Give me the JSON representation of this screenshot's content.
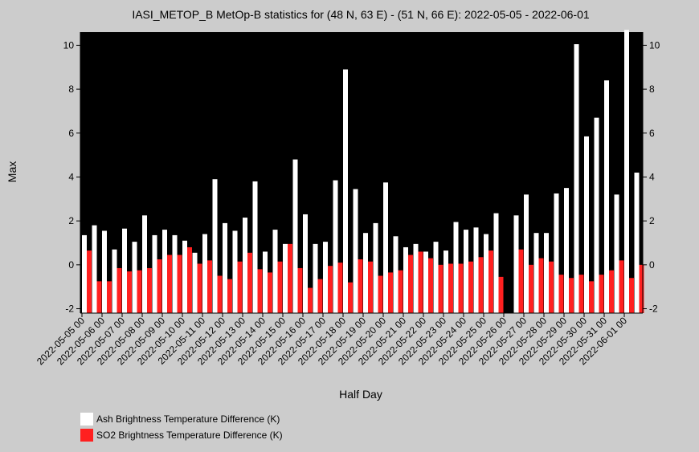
{
  "chart_data": {
    "type": "bar",
    "title": "IASI_METOP_B MetOp-B statistics for (48 N, 63 E) - (51 N, 66 E): 2022-05-05 - 2022-06-01",
    "xlabel": "Half Day",
    "ylabel": "Max",
    "ylim": [
      -2.2,
      10.6
    ],
    "yticks": [
      -2,
      0,
      2,
      4,
      6,
      8,
      10
    ],
    "x_tick_labels": [
      "2022-05-05 00",
      "2022-05-06 00",
      "2022-05-07 00",
      "2022-05-08 00",
      "2022-05-09 00",
      "2022-05-10 00",
      "2022-05-11 00",
      "2022-05-12 00",
      "2022-05-13 00",
      "2022-05-14 00",
      "2022-05-15 00",
      "2022-05-16 00",
      "2022-05-17 00",
      "2022-05-18 00",
      "2022-05-19 00",
      "2022-05-20 00",
      "2022-05-21 00",
      "2022-05-22 00",
      "2022-05-23 00",
      "2022-05-24 00",
      "2022-05-25 00",
      "2022-05-26 00",
      "2022-05-27 00",
      "2022-05-28 00",
      "2022-05-29 00",
      "2022-05-30 00",
      "2022-05-31 00",
      "2022-06-01 00"
    ],
    "grid": false,
    "legend_position": "bottom-left",
    "series": [
      {
        "name": "Ash Brightness Temperature Difference (K)",
        "color": "#ffffff",
        "values": [
          1.35,
          1.8,
          1.55,
          0.7,
          1.65,
          1.05,
          2.25,
          1.35,
          1.6,
          1.35,
          1.1,
          0.55,
          1.4,
          3.9,
          1.9,
          1.55,
          2.15,
          3.8,
          0.6,
          1.6,
          0.95,
          4.8,
          2.3,
          0.95,
          1.05,
          3.85,
          8.9,
          3.45,
          1.45,
          1.9,
          3.75,
          1.3,
          0.8,
          0.95,
          0.6,
          1.05,
          0.65,
          1.95,
          1.6,
          1.7,
          1.4,
          2.35,
          null,
          2.25,
          3.2,
          1.45,
          1.45,
          3.25,
          3.5,
          10.05,
          5.85,
          6.7,
          8.4,
          3.2,
          10.7,
          4.2
        ]
      },
      {
        "name": "SO2 Brightness Temperature Difference (K)",
        "color": "#ff2020",
        "values": [
          0.65,
          -0.75,
          -0.75,
          -0.15,
          -0.3,
          -0.25,
          -0.15,
          0.25,
          0.45,
          0.45,
          0.8,
          0.05,
          0.2,
          -0.5,
          -0.65,
          0.15,
          0.55,
          -0.2,
          -0.35,
          0.15,
          0.95,
          -0.15,
          -1.05,
          -0.65,
          -0.05,
          0.1,
          -0.8,
          0.25,
          0.15,
          -0.5,
          -0.35,
          -0.25,
          0.45,
          0.6,
          0.3,
          0.0,
          0.05,
          0.05,
          0.15,
          0.35,
          0.65,
          -0.55,
          null,
          0.7,
          0.0,
          0.3,
          0.15,
          -0.45,
          -0.6,
          -0.45,
          -0.75,
          -0.45,
          -0.25,
          0.2,
          -0.6,
          0.0
        ]
      }
    ]
  }
}
